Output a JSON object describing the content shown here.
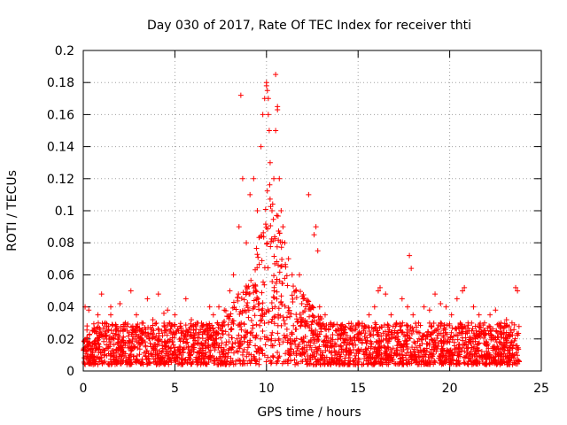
{
  "chart_data": {
    "type": "scatter",
    "title": "Day 030 of 2017, Rate Of TEC Index for receiver thti",
    "xlabel": "GPS time / hours",
    "ylabel": "ROTI / TECUs",
    "xlim": [
      0,
      25
    ],
    "ylim": [
      0,
      0.2
    ],
    "grid": true,
    "marker": "+",
    "color": "#ff0000",
    "xticks": [
      0,
      5,
      10,
      15,
      20,
      25
    ],
    "yticks": [
      0,
      0.02,
      0.04,
      0.06,
      0.08,
      0.1,
      0.12,
      0.14,
      0.16,
      0.18,
      0.2
    ],
    "xtick_labels": [
      "0",
      "5",
      "10",
      "15",
      "20",
      "25"
    ],
    "ytick_labels": [
      "0",
      "0.02",
      "0.04",
      "0.06",
      "0.08",
      "0.1",
      "0.12",
      "0.14",
      "0.16",
      "0.18",
      "0.2"
    ],
    "series": [
      {
        "name": "ROTI",
        "x": [
          0.1,
          0.3,
          0.5,
          0.8,
          1.0,
          1.2,
          1.5,
          1.8,
          2.0,
          2.3,
          2.6,
          2.9,
          3.2,
          3.5,
          3.8,
          4.1,
          4.4,
          4.7,
          5.0,
          5.3,
          5.6,
          5.9,
          6.2,
          6.5,
          6.8,
          7.1,
          7.4,
          7.7,
          8.0,
          8.2,
          8.5,
          8.7,
          8.9,
          9.1,
          9.3,
          9.5,
          9.7,
          9.8,
          9.9,
          10.0,
          10.05,
          10.1,
          10.15,
          10.2,
          10.3,
          10.4,
          10.5,
          10.6,
          10.7,
          10.8,
          10.9,
          11.0,
          11.2,
          11.4,
          11.6,
          11.8,
          12.0,
          12.3,
          12.6,
          12.9,
          13.2,
          13.5,
          13.8,
          14.1,
          14.4,
          14.7,
          15.0,
          15.3,
          15.6,
          15.9,
          16.2,
          16.5,
          16.8,
          17.1,
          17.4,
          17.7,
          18.0,
          18.3,
          18.6,
          18.9,
          19.2,
          19.5,
          19.8,
          20.1,
          20.4,
          20.7,
          21.0,
          21.3,
          21.6,
          21.9,
          22.2,
          22.5,
          22.8,
          23.1,
          23.4,
          23.7,
          8.6,
          10.0,
          10.1,
          10.5,
          10.6,
          12.7,
          12.8,
          17.8,
          17.9,
          1.5,
          4.6,
          6.9,
          2.7,
          16.1,
          19.5,
          20.8,
          23.6
        ],
        "y": [
          0.04,
          0.038,
          0.025,
          0.035,
          0.048,
          0.03,
          0.04,
          0.028,
          0.042,
          0.03,
          0.05,
          0.035,
          0.03,
          0.045,
          0.032,
          0.048,
          0.036,
          0.03,
          0.035,
          0.028,
          0.045,
          0.032,
          0.03,
          0.028,
          0.025,
          0.035,
          0.04,
          0.038,
          0.05,
          0.06,
          0.09,
          0.12,
          0.08,
          0.11,
          0.12,
          0.1,
          0.14,
          0.16,
          0.17,
          0.18,
          0.175,
          0.16,
          0.15,
          0.13,
          0.1,
          0.12,
          0.15,
          0.165,
          0.12,
          0.1,
          0.09,
          0.08,
          0.07,
          0.06,
          0.05,
          0.06,
          0.045,
          0.11,
          0.085,
          0.04,
          0.035,
          0.03,
          0.025,
          0.028,
          0.022,
          0.025,
          0.03,
          0.025,
          0.035,
          0.04,
          0.052,
          0.048,
          0.035,
          0.03,
          0.045,
          0.04,
          0.035,
          0.03,
          0.04,
          0.038,
          0.048,
          0.03,
          0.04,
          0.035,
          0.045,
          0.05,
          0.03,
          0.04,
          0.035,
          0.03,
          0.035,
          0.038,
          0.03,
          0.032,
          0.03,
          0.05,
          0.172,
          0.178,
          0.17,
          0.185,
          0.163,
          0.09,
          0.075,
          0.072,
          0.064,
          0.035,
          0.038,
          0.04,
          0.028,
          0.05,
          0.042,
          0.052,
          0.052
        ]
      }
    ],
    "background_noise": {
      "x_range": [
        0,
        23.8
      ],
      "y_min": 0.004,
      "y_typical_max": 0.03,
      "peak_hour": 10.2
    }
  }
}
